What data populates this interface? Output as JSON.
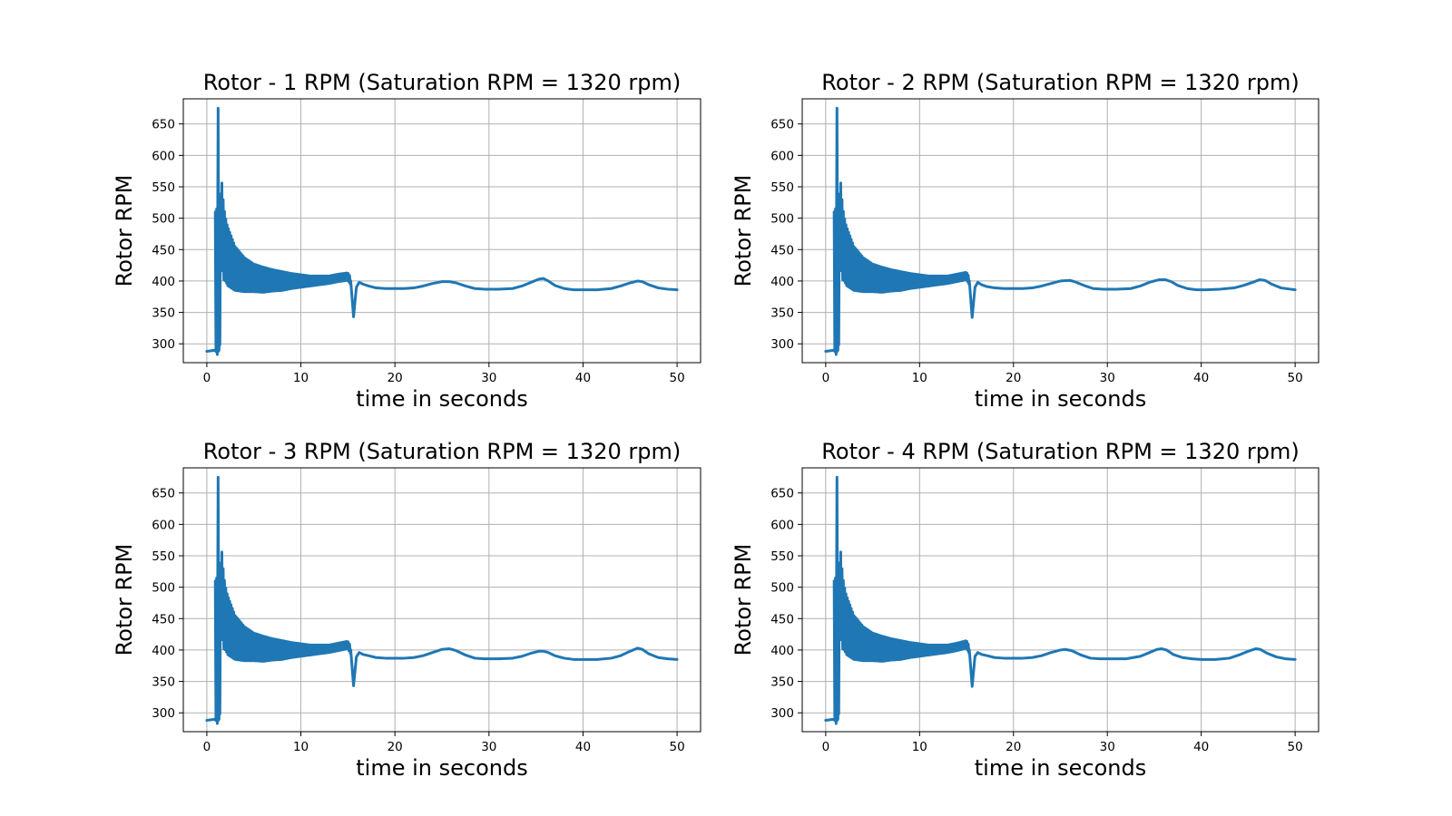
{
  "colors": {
    "series": "#1f77b4",
    "grid": "#b0b0b0"
  },
  "chart_data": [
    {
      "type": "line",
      "title": "Rotor - 1 RPM (Saturation RPM = 1320 rpm)",
      "xlabel": "time in seconds",
      "ylabel": "Rotor RPM",
      "xlim": [
        -2.5,
        52.5
      ],
      "ylim": [
        270,
        690
      ],
      "xticks": [
        0,
        10,
        20,
        30,
        40,
        50
      ],
      "yticks": [
        300,
        350,
        400,
        450,
        500,
        550,
        600,
        650
      ],
      "grid": true,
      "series": [
        {
          "x": [
            0,
            1.0,
            1.1,
            1.2,
            1.3,
            1.5,
            1.8,
            2.2,
            3,
            4,
            5,
            6,
            7,
            8,
            9,
            10,
            11,
            12,
            13,
            14,
            15,
            15.3,
            15.6,
            15.9,
            16.2,
            16.6,
            17.2,
            18,
            19,
            20,
            21,
            22,
            23,
            24,
            25,
            25.8,
            26.5,
            27.5,
            28.5,
            29.5,
            31,
            32.5,
            33.5,
            34.5,
            35.3,
            35.8,
            36.3,
            37,
            38,
            39,
            40,
            41.5,
            43,
            44,
            45,
            45.8,
            46.3,
            47,
            48,
            49,
            50
          ],
          "y": [
            288,
            290,
            290,
            675,
            290,
            505,
            460,
            440,
            420,
            410,
            405,
            402,
            401,
            400,
            400,
            400,
            400,
            401,
            402,
            405,
            407,
            400,
            343,
            390,
            398,
            395,
            392,
            389,
            388,
            388,
            388,
            389,
            392,
            396,
            399,
            399,
            397,
            392,
            388,
            387,
            387,
            388,
            392,
            398,
            403,
            404,
            400,
            393,
            388,
            386,
            386,
            386,
            388,
            392,
            397,
            400,
            399,
            394,
            389,
            387,
            386
          ]
        }
      ],
      "band": {
        "x": [
          0.9,
          1.2,
          1.5,
          2,
          3,
          4,
          5,
          6,
          7,
          8,
          9,
          10,
          11,
          12,
          13,
          14,
          15,
          15.3
        ],
        "amp": [
          110,
          120,
          70,
          50,
          35,
          27,
          22,
          20,
          17,
          15,
          12,
          10,
          8,
          7,
          6,
          6,
          6,
          6
        ]
      }
    },
    {
      "type": "line",
      "title": "Rotor - 2 RPM (Saturation RPM = 1320 rpm)",
      "xlabel": "time in seconds",
      "ylabel": "Rotor RPM",
      "xlim": [
        -2.5,
        52.5
      ],
      "ylim": [
        270,
        690
      ],
      "xticks": [
        0,
        10,
        20,
        30,
        40,
        50
      ],
      "yticks": [
        300,
        350,
        400,
        450,
        500,
        550,
        600,
        650
      ],
      "grid": true,
      "series": [
        {
          "x": [
            0,
            1.0,
            1.1,
            1.2,
            1.3,
            1.5,
            1.8,
            2.2,
            3,
            4,
            5,
            6,
            7,
            8,
            9,
            10,
            11,
            12,
            13,
            14,
            15,
            15.3,
            15.6,
            15.9,
            16.2,
            16.6,
            17.2,
            18,
            19,
            20,
            21,
            22,
            23,
            24,
            25,
            26,
            26.5,
            27.5,
            28.5,
            29.5,
            31,
            32.5,
            33.5,
            34.5,
            35.5,
            36.2,
            36.8,
            37.5,
            38.5,
            39.5,
            40.5,
            42,
            43.5,
            44.5,
            45.5,
            46.2,
            46.8,
            47.5,
            48.5,
            49.5,
            50
          ],
          "y": [
            288,
            290,
            290,
            675,
            290,
            505,
            460,
            440,
            420,
            410,
            405,
            402,
            401,
            400,
            400,
            400,
            400,
            401,
            402,
            405,
            408,
            400,
            342,
            390,
            398,
            394,
            391,
            389,
            388,
            388,
            388,
            389,
            392,
            396,
            400,
            401,
            399,
            393,
            388,
            387,
            387,
            388,
            392,
            398,
            402,
            402,
            399,
            393,
            388,
            386,
            386,
            387,
            389,
            393,
            398,
            402,
            401,
            395,
            389,
            387,
            386
          ]
        }
      ],
      "band": {
        "x": [
          0.9,
          1.2,
          1.5,
          2,
          3,
          4,
          5,
          6,
          7,
          8,
          9,
          10,
          11,
          12,
          13,
          14,
          15,
          15.3
        ],
        "amp": [
          110,
          120,
          70,
          50,
          35,
          27,
          22,
          20,
          17,
          15,
          12,
          10,
          8,
          7,
          6,
          6,
          6,
          6
        ]
      }
    },
    {
      "type": "line",
      "title": "Rotor - 3 RPM (Saturation RPM = 1320 rpm)",
      "xlabel": "time in seconds",
      "ylabel": "Rotor RPM",
      "xlim": [
        -2.5,
        52.5
      ],
      "ylim": [
        270,
        690
      ],
      "xticks": [
        0,
        10,
        20,
        30,
        40,
        50
      ],
      "yticks": [
        300,
        350,
        400,
        450,
        500,
        550,
        600,
        650
      ],
      "grid": true,
      "series": [
        {
          "x": [
            0,
            1.0,
            1.1,
            1.2,
            1.3,
            1.5,
            1.8,
            2.2,
            3,
            4,
            5,
            6,
            7,
            8,
            9,
            10,
            11,
            12,
            13,
            14,
            15,
            15.3,
            15.6,
            15.9,
            16.2,
            16.6,
            17.2,
            18,
            19,
            20,
            21,
            22,
            23,
            24,
            25,
            25.8,
            26.5,
            27.5,
            28.5,
            29.5,
            31,
            32.5,
            33.5,
            34.5,
            35.3,
            35.8,
            36.3,
            37,
            38,
            39,
            40,
            41.5,
            43,
            44,
            45,
            45.8,
            46.3,
            47,
            48,
            49,
            50
          ],
          "y": [
            288,
            290,
            290,
            675,
            290,
            505,
            460,
            440,
            420,
            410,
            405,
            402,
            401,
            400,
            400,
            400,
            400,
            401,
            402,
            405,
            408,
            400,
            343,
            389,
            396,
            393,
            391,
            388,
            387,
            387,
            387,
            388,
            391,
            396,
            401,
            402,
            399,
            392,
            387,
            386,
            386,
            387,
            390,
            395,
            398,
            398,
            396,
            391,
            387,
            385,
            385,
            385,
            387,
            391,
            398,
            403,
            401,
            394,
            388,
            386,
            385
          ]
        }
      ],
      "band": {
        "x": [
          0.9,
          1.2,
          1.5,
          2,
          3,
          4,
          5,
          6,
          7,
          8,
          9,
          10,
          11,
          12,
          13,
          14,
          15,
          15.3
        ],
        "amp": [
          110,
          120,
          70,
          50,
          35,
          27,
          22,
          20,
          17,
          15,
          12,
          10,
          8,
          7,
          6,
          6,
          6,
          6
        ]
      }
    },
    {
      "type": "line",
      "title": "Rotor - 4 RPM (Saturation RPM = 1320 rpm)",
      "xlabel": "time in seconds",
      "ylabel": "Rotor RPM",
      "xlim": [
        -2.5,
        52.5
      ],
      "ylim": [
        270,
        690
      ],
      "xticks": [
        0,
        10,
        20,
        30,
        40,
        50
      ],
      "yticks": [
        300,
        350,
        400,
        450,
        500,
        550,
        600,
        650
      ],
      "grid": true,
      "series": [
        {
          "x": [
            0,
            1.0,
            1.1,
            1.2,
            1.3,
            1.5,
            1.8,
            2.2,
            3,
            4,
            5,
            6,
            7,
            8,
            9,
            10,
            11,
            12,
            13,
            14,
            15,
            15.3,
            15.6,
            15.9,
            16.2,
            16.6,
            17.2,
            18,
            19,
            20,
            21,
            22,
            23,
            24,
            25,
            25.5,
            26.2,
            27.2,
            28.2,
            29.2,
            30.5,
            32,
            33.5,
            34.5,
            35.3,
            35.8,
            36.3,
            37,
            38,
            39,
            40,
            41.5,
            43,
            44,
            45,
            45.8,
            46.3,
            47,
            48,
            49,
            50
          ],
          "y": [
            288,
            290,
            290,
            675,
            290,
            505,
            460,
            440,
            420,
            410,
            405,
            402,
            401,
            400,
            400,
            400,
            400,
            401,
            402,
            405,
            409,
            400,
            342,
            390,
            396,
            393,
            391,
            388,
            387,
            387,
            387,
            388,
            391,
            396,
            400,
            401,
            399,
            392,
            387,
            386,
            386,
            386,
            390,
            396,
            401,
            402,
            400,
            393,
            388,
            386,
            385,
            385,
            387,
            392,
            398,
            402,
            401,
            395,
            389,
            386,
            385
          ]
        }
      ],
      "band": {
        "x": [
          0.9,
          1.2,
          1.5,
          2,
          3,
          4,
          5,
          6,
          7,
          8,
          9,
          10,
          11,
          12,
          13,
          14,
          15,
          15.3
        ],
        "amp": [
          110,
          120,
          70,
          50,
          35,
          27,
          22,
          20,
          17,
          15,
          12,
          10,
          8,
          7,
          6,
          6,
          6,
          6
        ]
      }
    }
  ]
}
